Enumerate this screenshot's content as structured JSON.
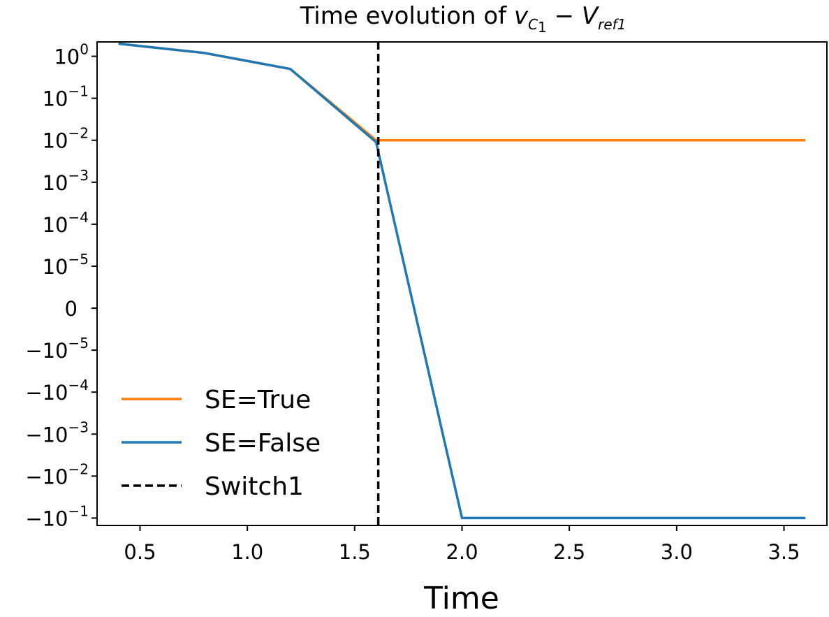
{
  "chart_data": {
    "type": "line",
    "title_parts": {
      "prefix": "Time evolution of ",
      "v": "v",
      "c": "C",
      "c_sub": "1",
      "minus": " − ",
      "V": "V",
      "ref_sub": "ref1"
    },
    "xlabel": "Time",
    "ylabel": "",
    "x_scale": "linear",
    "y_scale": "symlog",
    "y_linthresh": 1e-05,
    "xlim": [
      0.3,
      3.7
    ],
    "ylim": [
      -0.15,
      2.2
    ],
    "grid": false,
    "legend_position": "lower-left",
    "x_ticks": [
      {
        "value": 0.5,
        "label": "0.5"
      },
      {
        "value": 1.0,
        "label": "1.0"
      },
      {
        "value": 1.5,
        "label": "1.5"
      },
      {
        "value": 2.0,
        "label": "2.0"
      },
      {
        "value": 2.5,
        "label": "2.5"
      },
      {
        "value": 3.0,
        "label": "3.0"
      },
      {
        "value": 3.5,
        "label": "3.5"
      }
    ],
    "y_ticks": [
      {
        "value": 1,
        "base": "10",
        "exp": "0"
      },
      {
        "value": 0.1,
        "base": "10",
        "exp": "−1"
      },
      {
        "value": 0.01,
        "base": "10",
        "exp": "−2"
      },
      {
        "value": 0.001,
        "base": "10",
        "exp": "−3"
      },
      {
        "value": 0.0001,
        "base": "10",
        "exp": "−4"
      },
      {
        "value": 1e-05,
        "base": "10",
        "exp": "−5"
      },
      {
        "value": 0,
        "base": "0",
        "exp": ""
      },
      {
        "value": -1e-05,
        "base": "−10",
        "exp": "−5"
      },
      {
        "value": -0.0001,
        "base": "−10",
        "exp": "−4"
      },
      {
        "value": -0.001,
        "base": "−10",
        "exp": "−3"
      },
      {
        "value": -0.01,
        "base": "−10",
        "exp": "−2"
      },
      {
        "value": -0.1,
        "base": "−10",
        "exp": "−1"
      }
    ],
    "series": [
      {
        "name": "SE=True",
        "color": "#ff7f0e",
        "dash": "solid",
        "x": [
          0.4,
          0.8,
          1.2,
          1.6,
          3.6
        ],
        "y": [
          2.0,
          1.2,
          0.5,
          0.01,
          0.01
        ]
      },
      {
        "name": "SE=False",
        "color": "#1f77b4",
        "dash": "solid",
        "x": [
          0.4,
          0.8,
          1.2,
          1.6,
          2.0,
          3.6
        ],
        "y": [
          2.0,
          1.2,
          0.5,
          0.009,
          -0.1,
          -0.1
        ]
      }
    ],
    "vlines": [
      {
        "name": "Switch1",
        "x": 1.61,
        "color": "#000000",
        "dash": "dashed"
      }
    ]
  }
}
